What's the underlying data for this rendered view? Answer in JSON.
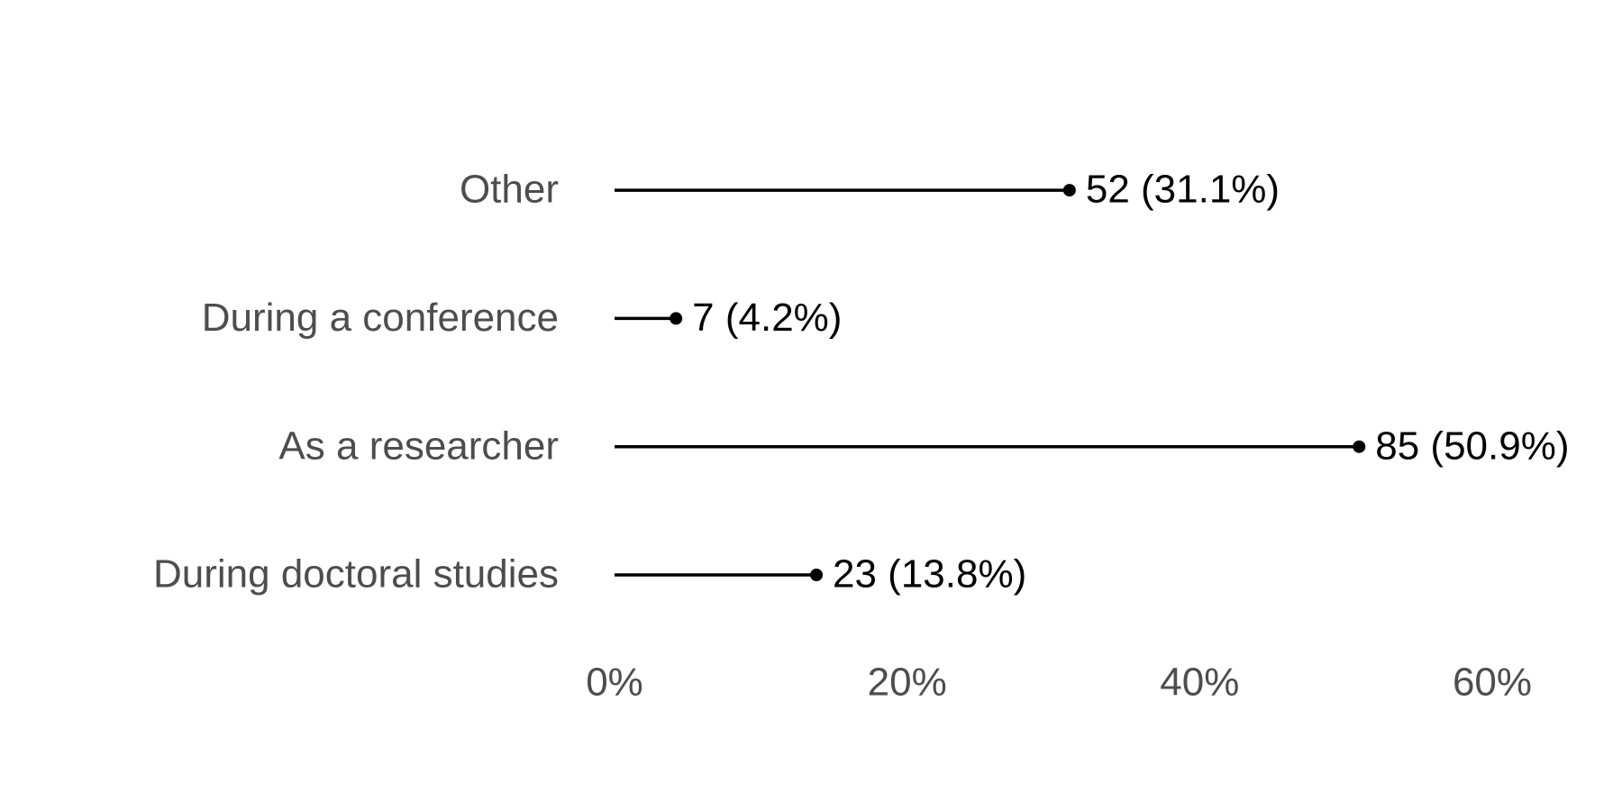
{
  "chart_data": {
    "type": "lollipop",
    "categories": [
      "During doctoral studies",
      "As a researcher",
      "During a conference",
      "Other"
    ],
    "values": [
      13.8,
      50.9,
      4.2,
      31.1
    ],
    "value_labels": [
      "23 (13.8%)",
      "85 (50.9%)",
      "7 (4.2%)",
      "52 (31.1%)"
    ],
    "color": "#000000",
    "xlim": [
      0,
      60
    ],
    "xticks": [
      {
        "value": 0,
        "label": "0%"
      },
      {
        "value": 20,
        "label": "20%"
      },
      {
        "value": 40,
        "label": "40%"
      },
      {
        "value": 60,
        "label": "60%"
      }
    ],
    "grid": false
  }
}
